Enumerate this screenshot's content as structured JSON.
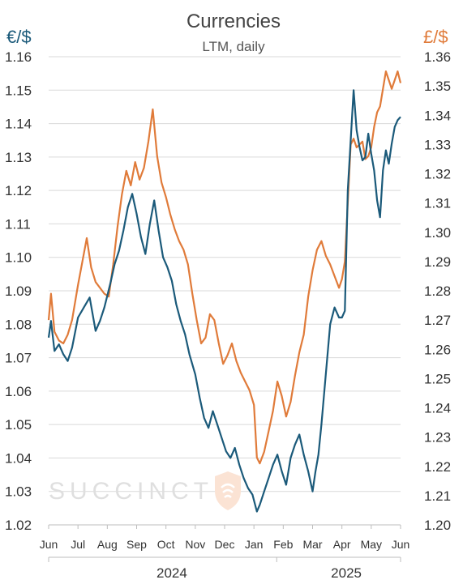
{
  "colors": {
    "eur": "#1b5a7a",
    "gbp": "#e07b3a",
    "grid": "#d9d9d9",
    "text": "#333333"
  },
  "watermark": {
    "text": "SUCCINCT",
    "icon": "shield-logo-icon"
  },
  "chart_data": {
    "type": "line",
    "title": "Currencies",
    "subtitle": "LTM, daily",
    "ylabel_left": "€/$",
    "ylabel_right": "£/$",
    "ylim_left": [
      1.02,
      1.16
    ],
    "ylim_right": [
      1.2,
      1.36
    ],
    "yticks_left": [
      "1.16",
      "1.15",
      "1.14",
      "1.13",
      "1.12",
      "1.11",
      "1.10",
      "1.09",
      "1.08",
      "1.07",
      "1.06",
      "1.05",
      "1.04",
      "1.03",
      "1.02"
    ],
    "yticks_right": [
      "1.36",
      "1.35",
      "1.34",
      "1.33",
      "1.32",
      "1.31",
      "1.30",
      "1.29",
      "1.28",
      "1.27",
      "1.26",
      "1.25",
      "1.24",
      "1.23",
      "1.22",
      "1.21",
      "1.20"
    ],
    "xlim": [
      0,
      12
    ],
    "months": [
      "Jun",
      "Jul",
      "Aug",
      "Sep",
      "Oct",
      "Nov",
      "Dec",
      "Jan",
      "Feb",
      "Mar",
      "Apr",
      "May",
      "Jun"
    ],
    "years": [
      {
        "label": "2024",
        "at": 4.2
      },
      {
        "label": "2025",
        "at": 10.15
      }
    ],
    "grid": "horizontal",
    "series": [
      {
        "key": "eur",
        "axis": "left",
        "x": [
          0,
          0.08,
          0.2,
          0.35,
          0.5,
          0.65,
          0.8,
          1.0,
          1.2,
          1.4,
          1.6,
          1.75,
          1.9,
          2.1,
          2.25,
          2.4,
          2.55,
          2.7,
          2.85,
          3.0,
          3.15,
          3.3,
          3.45,
          3.6,
          3.75,
          3.9,
          4.05,
          4.2,
          4.35,
          4.5,
          4.65,
          4.8,
          5.0,
          5.15,
          5.3,
          5.45,
          5.6,
          5.75,
          5.9,
          6.05,
          6.2,
          6.35,
          6.5,
          6.65,
          6.8,
          6.95,
          7.1,
          7.2,
          7.35,
          7.5,
          7.65,
          7.8,
          7.95,
          8.1,
          8.25,
          8.4,
          8.55,
          8.7,
          8.85,
          9.0,
          9.1,
          9.2,
          9.3,
          9.45,
          9.6,
          9.75,
          9.9,
          10.0,
          10.1,
          10.2,
          10.3,
          10.4,
          10.5,
          10.6,
          10.7,
          10.8,
          10.9,
          11.0,
          11.1,
          11.2,
          11.3,
          11.4,
          11.5,
          11.6,
          11.7,
          11.8,
          11.9,
          12.0
        ],
        "values": [
          1.076,
          1.081,
          1.072,
          1.074,
          1.071,
          1.069,
          1.073,
          1.082,
          1.085,
          1.088,
          1.078,
          1.081,
          1.085,
          1.092,
          1.098,
          1.102,
          1.108,
          1.115,
          1.119,
          1.113,
          1.106,
          1.101,
          1.11,
          1.117,
          1.108,
          1.1,
          1.097,
          1.093,
          1.086,
          1.081,
          1.077,
          1.071,
          1.065,
          1.058,
          1.052,
          1.049,
          1.054,
          1.05,
          1.046,
          1.042,
          1.04,
          1.043,
          1.038,
          1.034,
          1.031,
          1.029,
          1.024,
          1.026,
          1.03,
          1.034,
          1.038,
          1.041,
          1.036,
          1.032,
          1.04,
          1.044,
          1.047,
          1.041,
          1.036,
          1.03,
          1.036,
          1.041,
          1.05,
          1.065,
          1.08,
          1.085,
          1.082,
          1.082,
          1.084,
          1.12,
          1.135,
          1.15,
          1.138,
          1.133,
          1.129,
          1.13,
          1.137,
          1.131,
          1.126,
          1.117,
          1.112,
          1.126,
          1.132,
          1.128,
          1.134,
          1.139,
          1.141,
          1.142
        ]
      },
      {
        "key": "gbp",
        "axis": "right",
        "x": [
          0,
          0.08,
          0.2,
          0.35,
          0.5,
          0.65,
          0.8,
          1.0,
          1.15,
          1.3,
          1.45,
          1.6,
          1.75,
          1.9,
          2.05,
          2.2,
          2.35,
          2.5,
          2.65,
          2.8,
          2.95,
          3.1,
          3.25,
          3.4,
          3.55,
          3.7,
          3.85,
          4.0,
          4.15,
          4.3,
          4.45,
          4.6,
          4.75,
          4.9,
          5.05,
          5.2,
          5.35,
          5.5,
          5.65,
          5.8,
          5.95,
          6.1,
          6.25,
          6.4,
          6.55,
          6.7,
          6.85,
          7.0,
          7.1,
          7.2,
          7.35,
          7.5,
          7.65,
          7.8,
          7.95,
          8.1,
          8.25,
          8.4,
          8.55,
          8.7,
          8.85,
          9.0,
          9.15,
          9.3,
          9.45,
          9.6,
          9.75,
          9.9,
          10.0,
          10.1,
          10.2,
          10.3,
          10.4,
          10.5,
          10.6,
          10.7,
          10.8,
          10.9,
          11.0,
          11.1,
          11.2,
          11.3,
          11.4,
          11.5,
          11.6,
          11.7,
          11.8,
          11.9,
          12.0
        ],
        "values": [
          1.27,
          1.279,
          1.266,
          1.263,
          1.262,
          1.265,
          1.27,
          1.282,
          1.29,
          1.298,
          1.288,
          1.283,
          1.281,
          1.279,
          1.278,
          1.289,
          1.302,
          1.313,
          1.321,
          1.316,
          1.324,
          1.318,
          1.322,
          1.331,
          1.342,
          1.326,
          1.317,
          1.312,
          1.306,
          1.301,
          1.297,
          1.294,
          1.289,
          1.279,
          1.27,
          1.262,
          1.264,
          1.272,
          1.27,
          1.262,
          1.255,
          1.258,
          1.262,
          1.256,
          1.252,
          1.249,
          1.246,
          1.241,
          1.223,
          1.221,
          1.225,
          1.232,
          1.239,
          1.249,
          1.244,
          1.237,
          1.242,
          1.251,
          1.259,
          1.265,
          1.278,
          1.287,
          1.294,
          1.297,
          1.292,
          1.289,
          1.285,
          1.281,
          1.284,
          1.29,
          1.31,
          1.33,
          1.332,
          1.329,
          1.33,
          1.331,
          1.325,
          1.326,
          1.329,
          1.336,
          1.341,
          1.343,
          1.349,
          1.355,
          1.352,
          1.349,
          1.352,
          1.355,
          1.351
        ]
      }
    ]
  }
}
